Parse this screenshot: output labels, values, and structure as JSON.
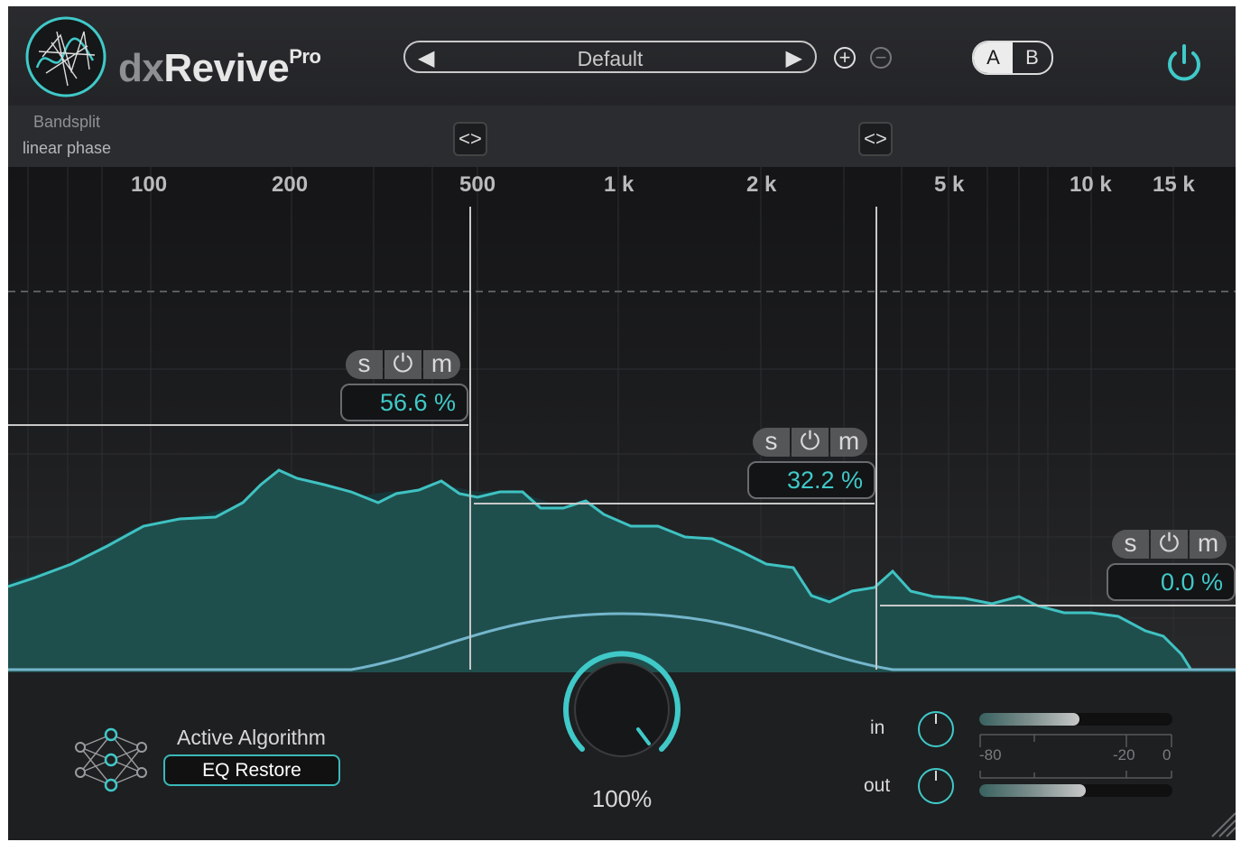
{
  "app": {
    "name_prefix": "dx",
    "name_main": "Revive",
    "name_suffix": "Pro"
  },
  "preset": {
    "name": "Default",
    "prev_icon": "◀",
    "next_icon": "▶"
  },
  "ab": {
    "a": "A",
    "b": "B"
  },
  "icons": {
    "add": "+",
    "remove": "−",
    "crossover": "<>"
  },
  "bandsplit": {
    "title": "Bandsplit",
    "mode": "linear phase"
  },
  "freq_ticks": [
    "100",
    "200",
    "500",
    "1 k",
    "2 k",
    "5 k",
    "10 k",
    "15 k"
  ],
  "bands": [
    {
      "solo": "s",
      "power": "⏻",
      "mute": "m",
      "amount": "56.6 %"
    },
    {
      "solo": "s",
      "power": "⏻",
      "mute": "m",
      "amount": "32.2 %"
    },
    {
      "solo": "s",
      "power": "⏻",
      "mute": "m",
      "amount": "0.0 %"
    }
  ],
  "algorithm": {
    "label": "Active Algorithm",
    "value": "EQ Restore"
  },
  "mix": {
    "value": "100%"
  },
  "io": {
    "in_label": "in",
    "out_label": "out",
    "scale": [
      "-80",
      "-20",
      "0"
    ],
    "in_level": 0.52,
    "out_level": 0.55
  },
  "colors": {
    "accent": "#40c9c9",
    "spectrum_fill": "#1f4f4d",
    "background": "#1f2022"
  }
}
